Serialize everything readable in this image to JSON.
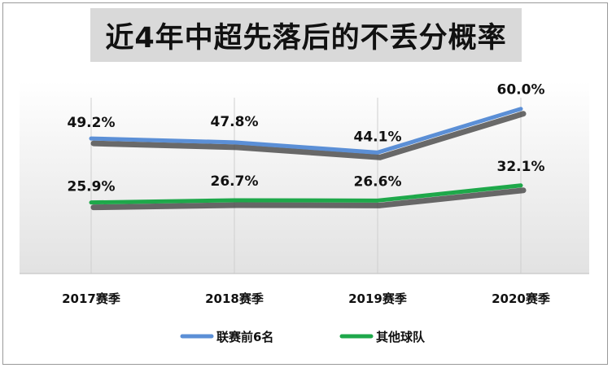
{
  "chart_data": {
    "type": "line",
    "title": "近4年中超先落后的不丢分概率",
    "categories": [
      "2017赛季",
      "2018赛季",
      "2019赛季",
      "2020赛季"
    ],
    "series": [
      {
        "name": "联赛前6名",
        "values": [
          49.2,
          47.8,
          44.1,
          60.0
        ],
        "labels": [
          "49.2%",
          "47.8%",
          "44.1%",
          "60.0%"
        ],
        "color": "#5b8fd6"
      },
      {
        "name": "其他球队",
        "values": [
          25.9,
          26.7,
          26.6,
          32.1
        ],
        "labels": [
          "25.9%",
          "26.7%",
          "26.6%",
          "32.1%"
        ],
        "color": "#1ea84a"
      }
    ],
    "legend_position": "bottom",
    "grid": "vertical",
    "ylim": [
      0,
      70
    ]
  }
}
